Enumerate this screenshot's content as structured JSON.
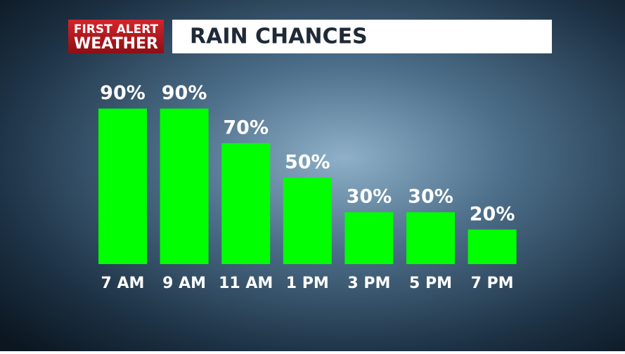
{
  "logo": {
    "line1": "FIRST ALERT",
    "line2": "WEATHER"
  },
  "chart_data": {
    "type": "bar",
    "title": "RAIN CHANCES",
    "categories": [
      "7 AM",
      "9 AM",
      "11 AM",
      "1 PM",
      "3 PM",
      "5 PM",
      "7 PM"
    ],
    "values": [
      90,
      90,
      70,
      50,
      30,
      30,
      20
    ],
    "value_labels": [
      "90%",
      "90%",
      "70%",
      "50%",
      "30%",
      "30%",
      "20%"
    ],
    "color": "#00ff00",
    "ylim": [
      0,
      100
    ]
  }
}
